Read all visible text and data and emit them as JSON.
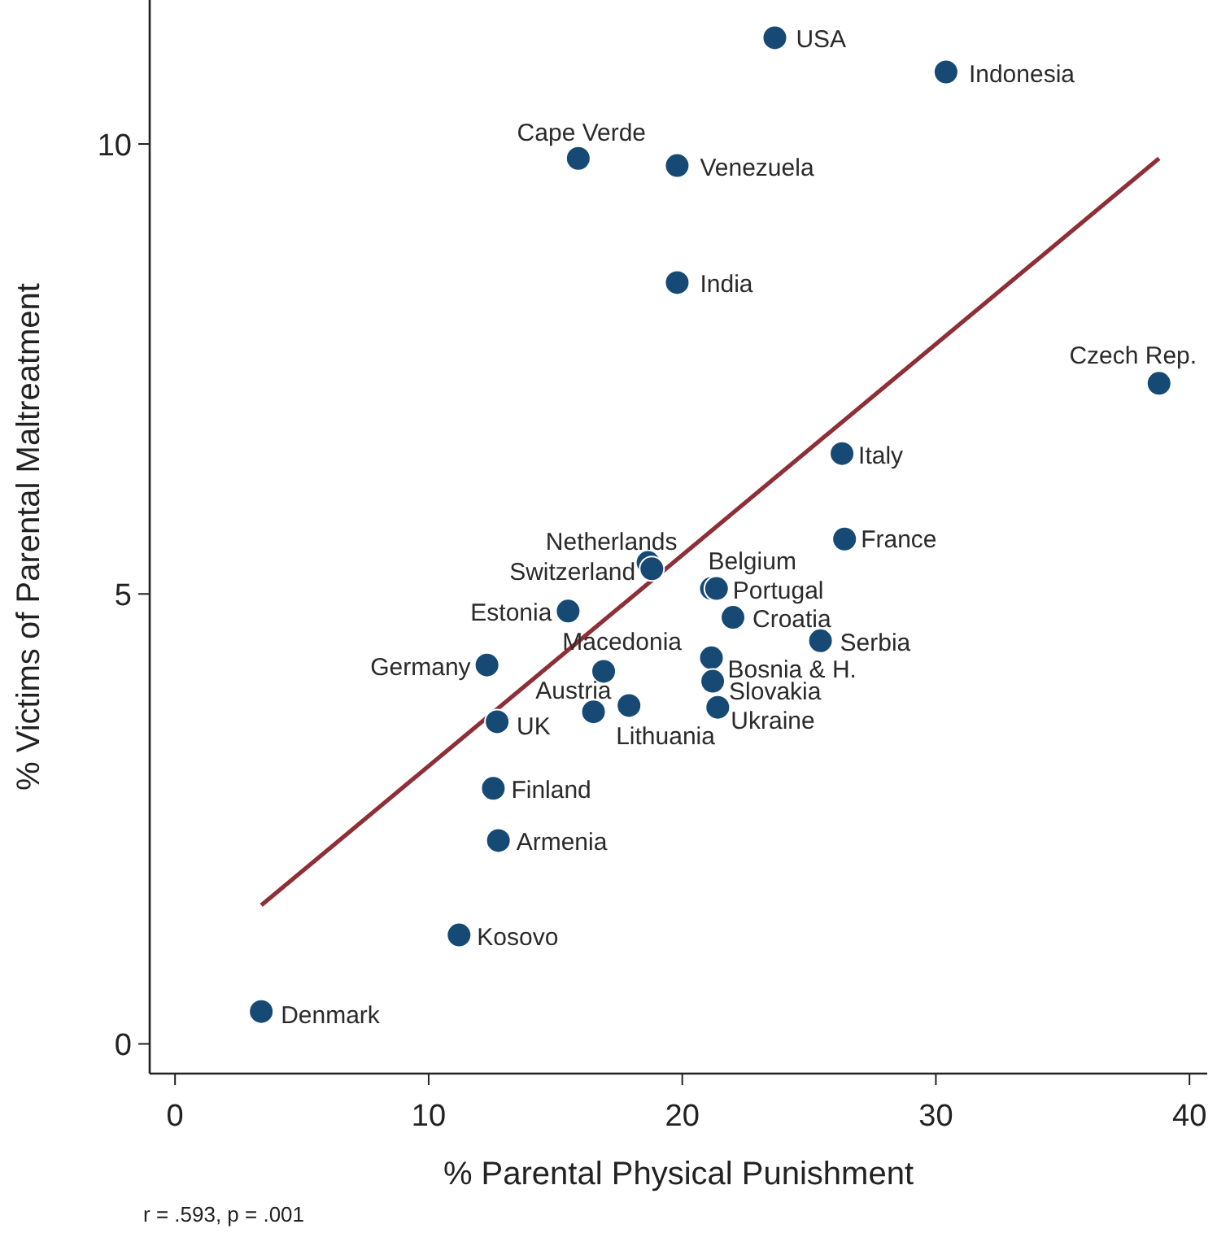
{
  "chart_data": {
    "type": "scatter",
    "xlabel": "% Parental Physical Punishment",
    "ylabel": "% Victims of Parental Maltreatment",
    "xlim": [
      -1,
      40.7
    ],
    "ylim": [
      -0.33,
      11.6
    ],
    "xticks": [
      0,
      10,
      20,
      30,
      40
    ],
    "yticks": [
      0,
      5,
      10
    ],
    "grid": false,
    "marker": "circle",
    "series": [
      {
        "color": "#164a74",
        "x": [
          23.65,
          30.4,
          15.9,
          19.8,
          19.8,
          38.8,
          26.3,
          26.4,
          18.65,
          18.8,
          21.15,
          21.35,
          22.0,
          15.5,
          25.45,
          12.3,
          16.9,
          21.15,
          21.2,
          16.5,
          17.9,
          21.4,
          12.7,
          12.55,
          12.75,
          11.2,
          3.4
        ],
        "values": [
          11.18,
          10.8,
          9.84,
          9.76,
          8.46,
          7.34,
          6.56,
          5.61,
          5.35,
          5.28,
          5.06,
          5.06,
          4.74,
          4.81,
          4.48,
          4.21,
          4.14,
          4.29,
          4.03,
          3.69,
          3.76,
          3.74,
          3.58,
          2.84,
          2.26,
          1.21,
          0.36
        ]
      },
      {
        "type": "line",
        "color": "#8e2f37",
        "marker": "none",
        "line_style": "solid",
        "x": [
          3.4,
          38.8
        ],
        "values": [
          1.54,
          9.84
        ]
      }
    ],
    "annotations": [
      {
        "text": "USA",
        "x": 23.65,
        "y": 11.18
      },
      {
        "text": "Indonesia",
        "x": 30.4,
        "y": 10.8
      },
      {
        "text": "Cape Verde",
        "x": 15.9,
        "y": 9.84
      },
      {
        "text": "Venezuela",
        "x": 19.8,
        "y": 9.76
      },
      {
        "text": "India",
        "x": 19.8,
        "y": 8.46
      },
      {
        "text": "Czech Rep.",
        "x": 38.8,
        "y": 7.34
      },
      {
        "text": "Italy",
        "x": 26.3,
        "y": 6.56
      },
      {
        "text": "France",
        "x": 26.4,
        "y": 5.61
      },
      {
        "text": "Netherlands",
        "x": 18.65,
        "y": 5.35
      },
      {
        "text": "Switzerland",
        "x": 18.8,
        "y": 5.28
      },
      {
        "text": "Belgium",
        "x": 21.15,
        "y": 5.06
      },
      {
        "text": "Portugal",
        "x": 21.35,
        "y": 5.06
      },
      {
        "text": "Croatia",
        "x": 22.0,
        "y": 4.74
      },
      {
        "text": "Estonia",
        "x": 15.5,
        "y": 4.81
      },
      {
        "text": "Serbia",
        "x": 25.45,
        "y": 4.48
      },
      {
        "text": "Germany",
        "x": 12.3,
        "y": 4.21
      },
      {
        "text": "Macedonia",
        "x": 16.9,
        "y": 4.14
      },
      {
        "text": "Bosnia & H.",
        "x": 21.15,
        "y": 4.29
      },
      {
        "text": "Slovakia",
        "x": 21.2,
        "y": 4.03
      },
      {
        "text": "Austria",
        "x": 16.5,
        "y": 3.69
      },
      {
        "text": "Lithuania",
        "x": 17.9,
        "y": 3.76
      },
      {
        "text": "Ukraine",
        "x": 21.4,
        "y": 3.74
      },
      {
        "text": "UK",
        "x": 12.7,
        "y": 3.58
      },
      {
        "text": "Finland",
        "x": 12.55,
        "y": 2.84
      },
      {
        "text": "Armenia",
        "x": 12.75,
        "y": 2.26
      },
      {
        "text": "Kosovo",
        "x": 11.2,
        "y": 1.21
      },
      {
        "text": "Denmark",
        "x": 3.4,
        "y": 0.36
      },
      "r =  .593, p =  .001"
    ]
  }
}
